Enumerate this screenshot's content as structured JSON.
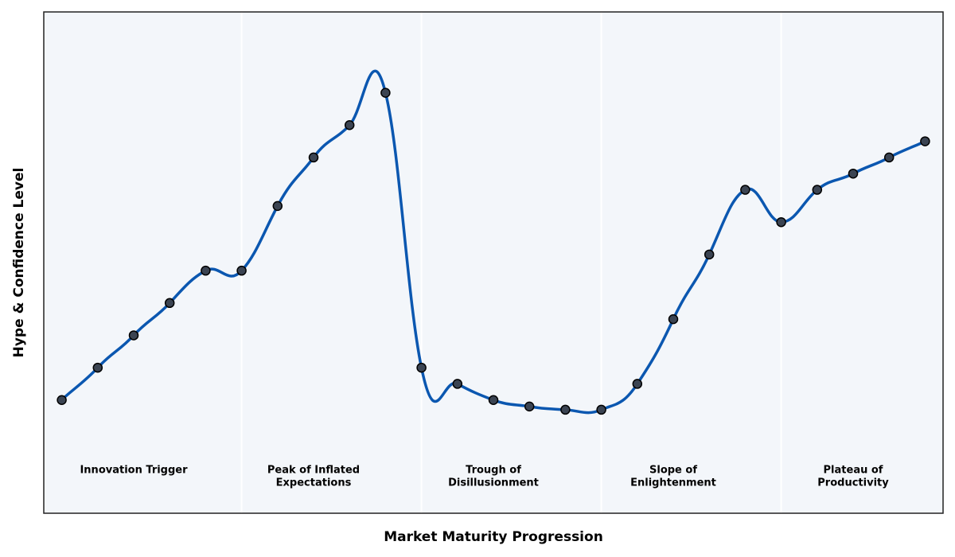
{
  "chart_data": {
    "type": "line",
    "x_label": "Market Maturity Progression",
    "y_label": "Hype & Confidence Level",
    "x": [
      0,
      1,
      2,
      3,
      4,
      5,
      6,
      7,
      8,
      9,
      10,
      11,
      12,
      13,
      14,
      15,
      16,
      17,
      18,
      19,
      20,
      21,
      22,
      23,
      24
    ],
    "series": [
      {
        "color": "#0b57b0",
        "marker_color": "#3b4452",
        "values": [
          35,
          45,
          55,
          65,
          75,
          75,
          95,
          110,
          120,
          130,
          45,
          40,
          35,
          33,
          32,
          32,
          40,
          60,
          80,
          100,
          90,
          100,
          105,
          110,
          115
        ]
      }
    ],
    "xlim": [
      -0.5,
      24.5
    ],
    "ylim": [
      0,
      155
    ],
    "vlines": [
      5,
      10,
      15,
      20
    ],
    "phases": [
      {
        "lines": [
          "Innovation Trigger"
        ],
        "x": 2
      },
      {
        "lines": [
          "Peak of Inflated",
          "Expectations"
        ],
        "x": 7
      },
      {
        "lines": [
          "Trough of",
          "Disillusionment"
        ],
        "x": 12
      },
      {
        "lines": [
          "Slope of",
          "Enlightenment"
        ],
        "x": 17
      },
      {
        "lines": [
          "Plateau of",
          "Productivity"
        ],
        "x": 22
      }
    ],
    "background": "#f3f6fa"
  }
}
